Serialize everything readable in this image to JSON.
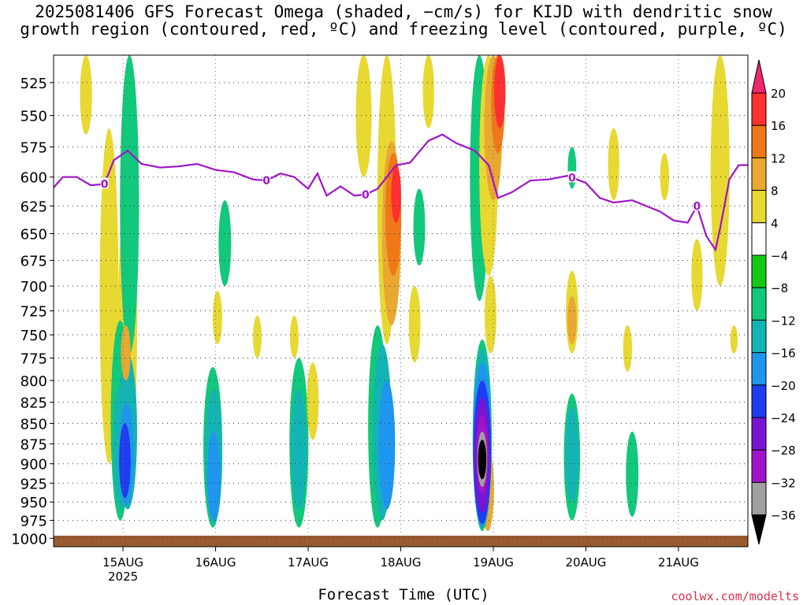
{
  "title": {
    "line1": "2025081406 GFS Forecast Omega (shaded, −cm/s) for KIJD with dendritic snow",
    "line2": "growth region (contoured, red, ºC) and freezing level (contoured, purple, ºC)"
  },
  "credit": "coolwx.com/modelts",
  "chart_data": {
    "type": "heatmap",
    "xlabel": "Forecast Time (UTC)",
    "ylabel": "",
    "x_ticks": [
      {
        "label": "15AUG",
        "sub": "2025",
        "day": 15
      },
      {
        "label": "16AUG",
        "sub": "",
        "day": 16
      },
      {
        "label": "17AUG",
        "sub": "",
        "day": 17
      },
      {
        "label": "18AUG",
        "sub": "",
        "day": 18
      },
      {
        "label": "19AUG",
        "sub": "",
        "day": 19
      },
      {
        "label": "20AUG",
        "sub": "",
        "day": 20
      },
      {
        "label": "21AUG",
        "sub": "",
        "day": 21
      }
    ],
    "xlim": [
      14.25,
      21.75
    ],
    "y_ticks": [
      525,
      550,
      575,
      600,
      625,
      650,
      675,
      700,
      725,
      750,
      775,
      800,
      825,
      850,
      875,
      900,
      925,
      950,
      975,
      1000
    ],
    "ylim_hpa": [
      505,
      1012
    ],
    "y_scale": "log-pressure",
    "grid": true,
    "colorbar": {
      "labels": [
        "20",
        "16",
        "12",
        "8",
        "4",
        "−4",
        "−8",
        "−12",
        "−16",
        "−20",
        "−24",
        "−28",
        "−32",
        "−36"
      ],
      "colors": [
        "#f0286e",
        "#ff3030",
        "#f07818",
        "#e8a832",
        "#e8d832",
        "#ffffff",
        "#14c814",
        "#12c87a",
        "#14b4b4",
        "#1e96f0",
        "#1e3cf0",
        "#7814d2",
        "#a014c8",
        "#a0a0a0",
        "#000000"
      ]
    },
    "freezing_level": {
      "color": "#a014c8",
      "label": "0",
      "label_days": [
        14.8,
        16.55,
        17.62,
        19.85,
        21.2
      ],
      "points": [
        [
          14.25,
          609
        ],
        [
          14.35,
          600
        ],
        [
          14.5,
          600
        ],
        [
          14.65,
          607
        ],
        [
          14.8,
          606
        ],
        [
          14.9,
          586
        ],
        [
          15.05,
          578
        ],
        [
          15.2,
          589
        ],
        [
          15.4,
          592
        ],
        [
          15.6,
          591
        ],
        [
          15.8,
          589
        ],
        [
          16.0,
          594
        ],
        [
          16.2,
          596
        ],
        [
          16.4,
          602
        ],
        [
          16.55,
          603
        ],
        [
          16.7,
          597
        ],
        [
          16.85,
          600
        ],
        [
          17.0,
          610
        ],
        [
          17.1,
          597
        ],
        [
          17.2,
          616
        ],
        [
          17.35,
          608
        ],
        [
          17.5,
          616
        ],
        [
          17.62,
          615
        ],
        [
          17.75,
          610
        ],
        [
          17.85,
          600
        ],
        [
          17.95,
          590
        ],
        [
          18.1,
          588
        ],
        [
          18.3,
          570
        ],
        [
          18.45,
          565
        ],
        [
          18.6,
          572
        ],
        [
          18.8,
          578
        ],
        [
          18.95,
          590
        ],
        [
          19.05,
          618
        ],
        [
          19.2,
          613
        ],
        [
          19.4,
          603
        ],
        [
          19.6,
          602
        ],
        [
          19.8,
          599
        ],
        [
          20.0,
          605
        ],
        [
          20.15,
          618
        ],
        [
          20.3,
          622
        ],
        [
          20.5,
          620
        ],
        [
          20.65,
          625
        ],
        [
          20.8,
          630
        ],
        [
          20.95,
          638
        ],
        [
          21.1,
          640
        ],
        [
          21.2,
          625
        ],
        [
          21.3,
          652
        ],
        [
          21.4,
          665
        ],
        [
          21.45,
          645
        ],
        [
          21.55,
          602
        ],
        [
          21.65,
          590
        ],
        [
          21.75,
          590
        ]
      ]
    },
    "omega_regions": [
      {
        "t": 14.6,
        "p0": 505,
        "p1": 565,
        "level": "4"
      },
      {
        "t": 14.85,
        "p0": 560,
        "p1": 900,
        "level": "4"
      },
      {
        "t": 15.05,
        "p0": 610,
        "p1": 905,
        "level": "4"
      },
      {
        "t": 15.07,
        "p0": 505,
        "p1": 770,
        "level": "-8"
      },
      {
        "t": 14.97,
        "p0": 735,
        "p1": 975,
        "level": "-8"
      },
      {
        "t": 14.98,
        "p0": 805,
        "p1": 960,
        "level": "-12"
      },
      {
        "t": 15.05,
        "p0": 770,
        "p1": 960,
        "level": "-12"
      },
      {
        "t": 15.04,
        "p0": 825,
        "p1": 955,
        "level": "-16"
      },
      {
        "t": 15.02,
        "p0": 850,
        "p1": 945,
        "level": "-20"
      },
      {
        "t": 15.03,
        "p0": 740,
        "p1": 800,
        "level": "8"
      },
      {
        "t": 15.97,
        "p0": 785,
        "p1": 985,
        "level": "-8"
      },
      {
        "t": 15.98,
        "p0": 810,
        "p1": 980,
        "level": "-12"
      },
      {
        "t": 15.98,
        "p0": 860,
        "p1": 975,
        "level": "-16"
      },
      {
        "t": 16.1,
        "p0": 620,
        "p1": 700,
        "level": "-8"
      },
      {
        "t": 16.02,
        "p0": 705,
        "p1": 760,
        "level": "4"
      },
      {
        "t": 16.45,
        "p0": 730,
        "p1": 775,
        "level": "4"
      },
      {
        "t": 16.85,
        "p0": 730,
        "p1": 775,
        "level": "4"
      },
      {
        "t": 16.9,
        "p0": 775,
        "p1": 985,
        "level": "-8"
      },
      {
        "t": 16.9,
        "p0": 810,
        "p1": 960,
        "level": "-12"
      },
      {
        "t": 17.05,
        "p0": 780,
        "p1": 870,
        "level": "4"
      },
      {
        "t": 17.6,
        "p0": 505,
        "p1": 600,
        "level": "4"
      },
      {
        "t": 17.75,
        "p0": 740,
        "p1": 985,
        "level": "-8"
      },
      {
        "t": 17.8,
        "p0": 760,
        "p1": 975,
        "level": "-12"
      },
      {
        "t": 17.85,
        "p0": 800,
        "p1": 960,
        "level": "-16"
      },
      {
        "t": 17.85,
        "p0": 505,
        "p1": 760,
        "level": "4"
      },
      {
        "t": 17.9,
        "p0": 570,
        "p1": 740,
        "level": "8"
      },
      {
        "t": 17.92,
        "p0": 580,
        "p1": 690,
        "level": "12"
      },
      {
        "t": 17.95,
        "p0": 590,
        "p1": 640,
        "level": "16"
      },
      {
        "t": 18.2,
        "p0": 610,
        "p1": 680,
        "level": "-8"
      },
      {
        "t": 18.15,
        "p0": 700,
        "p1": 780,
        "level": "4"
      },
      {
        "t": 18.3,
        "p0": 505,
        "p1": 560,
        "level": "4"
      },
      {
        "t": 18.85,
        "p0": 505,
        "p1": 715,
        "level": "-8"
      },
      {
        "t": 18.95,
        "p0": 505,
        "p1": 690,
        "level": "4"
      },
      {
        "t": 19.0,
        "p0": 505,
        "p1": 620,
        "level": "8"
      },
      {
        "t": 19.05,
        "p0": 505,
        "p1": 580,
        "level": "12"
      },
      {
        "t": 19.07,
        "p0": 505,
        "p1": 560,
        "level": "16"
      },
      {
        "t": 18.97,
        "p0": 690,
        "p1": 770,
        "level": "4"
      },
      {
        "t": 18.94,
        "p0": 880,
        "p1": 990,
        "level": "8"
      },
      {
        "t": 18.88,
        "p0": 755,
        "p1": 990,
        "level": "-8"
      },
      {
        "t": 18.88,
        "p0": 765,
        "p1": 985,
        "level": "-12"
      },
      {
        "t": 18.88,
        "p0": 780,
        "p1": 985,
        "level": "-16"
      },
      {
        "t": 18.88,
        "p0": 800,
        "p1": 980,
        "level": "-20"
      },
      {
        "t": 18.88,
        "p0": 820,
        "p1": 965,
        "level": "-24"
      },
      {
        "t": 18.88,
        "p0": 840,
        "p1": 940,
        "level": "-28"
      },
      {
        "t": 18.88,
        "p0": 860,
        "p1": 930,
        "level": "-32"
      },
      {
        "t": 18.88,
        "p0": 870,
        "p1": 920,
        "level": "-36"
      },
      {
        "t": 19.85,
        "p0": 575,
        "p1": 610,
        "level": "-8"
      },
      {
        "t": 19.85,
        "p0": 685,
        "p1": 770,
        "level": "4"
      },
      {
        "t": 19.85,
        "p0": 710,
        "p1": 760,
        "level": "8"
      },
      {
        "t": 19.85,
        "p0": 815,
        "p1": 975,
        "level": "-8"
      },
      {
        "t": 19.85,
        "p0": 830,
        "p1": 950,
        "level": "-12"
      },
      {
        "t": 20.3,
        "p0": 560,
        "p1": 620,
        "level": "4"
      },
      {
        "t": 20.45,
        "p0": 740,
        "p1": 790,
        "level": "4"
      },
      {
        "t": 20.5,
        "p0": 860,
        "p1": 970,
        "level": "-8"
      },
      {
        "t": 20.85,
        "p0": 580,
        "p1": 620,
        "level": "4"
      },
      {
        "t": 21.2,
        "p0": 655,
        "p1": 725,
        "level": "4"
      },
      {
        "t": 21.45,
        "p0": 505,
        "p1": 700,
        "level": "4"
      },
      {
        "t": 21.6,
        "p0": 740,
        "p1": 770,
        "level": "4"
      }
    ]
  }
}
